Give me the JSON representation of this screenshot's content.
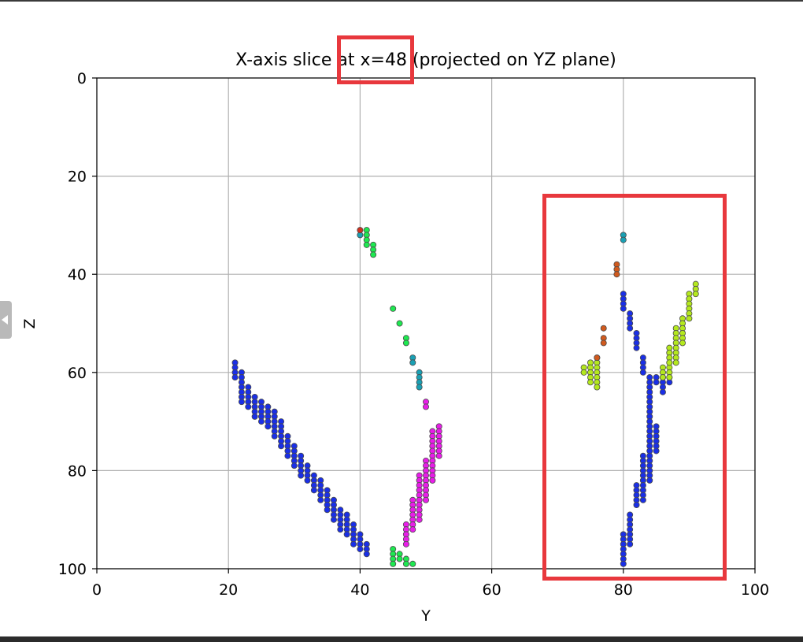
{
  "chart_data": {
    "type": "scatter",
    "title": "X-axis slice at x=48 (projected on YZ plane)",
    "xlabel": "Y",
    "ylabel": "Z",
    "xlim": [
      0,
      100
    ],
    "ylim": [
      100,
      0
    ],
    "y_inverted": true,
    "grid": true,
    "xticks": [
      0,
      20,
      40,
      60,
      80,
      100
    ],
    "yticks": [
      0,
      20,
      40,
      60,
      80,
      100
    ],
    "annotations": [
      {
        "type": "highlight-box",
        "target": "title value x=48",
        "color": "#e8383d"
      },
      {
        "type": "highlight-box",
        "target": "region y 68–95, z 24–102",
        "color": "#e8383d"
      }
    ],
    "series": [
      {
        "color": "#1a2fe6",
        "points": [
          [
            21,
            58
          ],
          [
            21,
            59
          ],
          [
            21,
            60
          ],
          [
            21,
            61
          ],
          [
            22,
            60
          ],
          [
            22,
            61
          ],
          [
            22,
            62
          ],
          [
            22,
            63
          ],
          [
            22,
            64
          ],
          [
            22,
            65
          ],
          [
            22,
            66
          ],
          [
            23,
            63
          ],
          [
            23,
            64
          ],
          [
            23,
            65
          ],
          [
            23,
            66
          ],
          [
            23,
            67
          ],
          [
            24,
            65
          ],
          [
            24,
            66
          ],
          [
            24,
            67
          ],
          [
            24,
            68
          ],
          [
            24,
            69
          ],
          [
            25,
            66
          ],
          [
            25,
            67
          ],
          [
            25,
            68
          ],
          [
            25,
            69
          ],
          [
            25,
            70
          ],
          [
            26,
            67
          ],
          [
            26,
            68
          ],
          [
            26,
            69
          ],
          [
            26,
            70
          ],
          [
            26,
            71
          ],
          [
            27,
            68
          ],
          [
            27,
            69
          ],
          [
            27,
            70
          ],
          [
            27,
            71
          ],
          [
            27,
            72
          ],
          [
            27,
            73
          ],
          [
            28,
            70
          ],
          [
            28,
            71
          ],
          [
            28,
            72
          ],
          [
            28,
            73
          ],
          [
            28,
            74
          ],
          [
            28,
            75
          ],
          [
            29,
            73
          ],
          [
            29,
            74
          ],
          [
            29,
            75
          ],
          [
            29,
            76
          ],
          [
            29,
            77
          ],
          [
            30,
            75
          ],
          [
            30,
            76
          ],
          [
            30,
            77
          ],
          [
            30,
            78
          ],
          [
            30,
            79
          ],
          [
            31,
            77
          ],
          [
            31,
            78
          ],
          [
            31,
            79
          ],
          [
            31,
            80
          ],
          [
            31,
            81
          ],
          [
            32,
            79
          ],
          [
            32,
            80
          ],
          [
            32,
            81
          ],
          [
            32,
            82
          ],
          [
            33,
            81
          ],
          [
            33,
            82
          ],
          [
            33,
            83
          ],
          [
            33,
            84
          ],
          [
            34,
            82
          ],
          [
            34,
            83
          ],
          [
            34,
            84
          ],
          [
            34,
            85
          ],
          [
            34,
            86
          ],
          [
            35,
            84
          ],
          [
            35,
            85
          ],
          [
            35,
            86
          ],
          [
            35,
            87
          ],
          [
            35,
            88
          ],
          [
            36,
            86
          ],
          [
            36,
            87
          ],
          [
            36,
            88
          ],
          [
            36,
            89
          ],
          [
            36,
            90
          ],
          [
            37,
            88
          ],
          [
            37,
            89
          ],
          [
            37,
            90
          ],
          [
            37,
            91
          ],
          [
            37,
            92
          ],
          [
            38,
            89
          ],
          [
            38,
            90
          ],
          [
            38,
            91
          ],
          [
            38,
            92
          ],
          [
            38,
            93
          ],
          [
            39,
            91
          ],
          [
            39,
            92
          ],
          [
            39,
            93
          ],
          [
            39,
            94
          ],
          [
            39,
            95
          ],
          [
            40,
            93
          ],
          [
            40,
            94
          ],
          [
            40,
            95
          ],
          [
            40,
            96
          ],
          [
            41,
            95
          ],
          [
            41,
            96
          ],
          [
            41,
            97
          ],
          [
            80,
            44
          ],
          [
            80,
            45
          ],
          [
            80,
            46
          ],
          [
            80,
            47
          ],
          [
            81,
            48
          ],
          [
            81,
            49
          ],
          [
            81,
            50
          ],
          [
            81,
            51
          ],
          [
            82,
            52
          ],
          [
            82,
            53
          ],
          [
            82,
            54
          ],
          [
            82,
            55
          ],
          [
            83,
            57
          ],
          [
            83,
            58
          ],
          [
            83,
            59
          ],
          [
            83,
            60
          ],
          [
            84,
            61
          ],
          [
            84,
            62
          ],
          [
            84,
            63
          ],
          [
            84,
            64
          ],
          [
            84,
            65
          ],
          [
            84,
            66
          ],
          [
            84,
            67
          ],
          [
            84,
            68
          ],
          [
            84,
            69
          ],
          [
            84,
            70
          ],
          [
            84,
            71
          ],
          [
            84,
            72
          ],
          [
            84,
            73
          ],
          [
            84,
            74
          ],
          [
            84,
            75
          ],
          [
            84,
            76
          ],
          [
            84,
            77
          ],
          [
            84,
            78
          ],
          [
            84,
            79
          ],
          [
            84,
            80
          ],
          [
            84,
            81
          ],
          [
            84,
            82
          ],
          [
            85,
            61
          ],
          [
            85,
            62
          ],
          [
            85,
            71
          ],
          [
            85,
            72
          ],
          [
            85,
            73
          ],
          [
            85,
            74
          ],
          [
            85,
            75
          ],
          [
            85,
            76
          ],
          [
            86,
            61
          ],
          [
            86,
            62
          ],
          [
            86,
            63
          ],
          [
            86,
            64
          ],
          [
            87,
            61
          ],
          [
            87,
            62
          ],
          [
            83,
            77
          ],
          [
            83,
            78
          ],
          [
            83,
            79
          ],
          [
            83,
            80
          ],
          [
            83,
            81
          ],
          [
            83,
            82
          ],
          [
            83,
            83
          ],
          [
            83,
            84
          ],
          [
            83,
            85
          ],
          [
            83,
            86
          ],
          [
            82,
            83
          ],
          [
            82,
            84
          ],
          [
            82,
            85
          ],
          [
            82,
            86
          ],
          [
            82,
            87
          ],
          [
            81,
            89
          ],
          [
            81,
            90
          ],
          [
            81,
            91
          ],
          [
            81,
            92
          ],
          [
            81,
            93
          ],
          [
            81,
            94
          ],
          [
            81,
            95
          ],
          [
            80,
            93
          ],
          [
            80,
            94
          ],
          [
            80,
            95
          ],
          [
            80,
            96
          ],
          [
            80,
            97
          ],
          [
            80,
            98
          ],
          [
            80,
            99
          ]
        ]
      },
      {
        "color": "#e81ee8",
        "points": [
          [
            52,
            71
          ],
          [
            52,
            72
          ],
          [
            52,
            73
          ],
          [
            52,
            74
          ],
          [
            52,
            75
          ],
          [
            52,
            76
          ],
          [
            52,
            77
          ],
          [
            51,
            72
          ],
          [
            51,
            73
          ],
          [
            51,
            74
          ],
          [
            51,
            75
          ],
          [
            51,
            76
          ],
          [
            51,
            77
          ],
          [
            51,
            78
          ],
          [
            51,
            79
          ],
          [
            51,
            80
          ],
          [
            51,
            81
          ],
          [
            51,
            82
          ],
          [
            50,
            78
          ],
          [
            50,
            79
          ],
          [
            50,
            80
          ],
          [
            50,
            81
          ],
          [
            50,
            82
          ],
          [
            50,
            83
          ],
          [
            50,
            84
          ],
          [
            50,
            85
          ],
          [
            50,
            86
          ],
          [
            49,
            81
          ],
          [
            49,
            82
          ],
          [
            49,
            83
          ],
          [
            49,
            84
          ],
          [
            49,
            85
          ],
          [
            49,
            86
          ],
          [
            49,
            87
          ],
          [
            49,
            88
          ],
          [
            49,
            89
          ],
          [
            49,
            90
          ],
          [
            48,
            86
          ],
          [
            48,
            87
          ],
          [
            48,
            88
          ],
          [
            48,
            89
          ],
          [
            48,
            90
          ],
          [
            48,
            91
          ],
          [
            48,
            92
          ],
          [
            47,
            91
          ],
          [
            47,
            92
          ],
          [
            47,
            93
          ],
          [
            47,
            94
          ],
          [
            47,
            95
          ],
          [
            50,
            66
          ],
          [
            50,
            67
          ]
        ]
      },
      {
        "color": "#1ee850",
        "points": [
          [
            41,
            31
          ],
          [
            41,
            32
          ],
          [
            41,
            33
          ],
          [
            41,
            34
          ],
          [
            42,
            34
          ],
          [
            42,
            35
          ],
          [
            42,
            36
          ],
          [
            45,
            96
          ],
          [
            45,
            97
          ],
          [
            45,
            98
          ],
          [
            45,
            99
          ],
          [
            46,
            97
          ],
          [
            46,
            98
          ],
          [
            47,
            98
          ],
          [
            47,
            99
          ],
          [
            48,
            99
          ],
          [
            45,
            47
          ],
          [
            46,
            50
          ],
          [
            47,
            53
          ],
          [
            47,
            54
          ]
        ]
      },
      {
        "color": "#1aa0b4",
        "points": [
          [
            40,
            32
          ],
          [
            48,
            57
          ],
          [
            48,
            58
          ],
          [
            49,
            60
          ],
          [
            49,
            61
          ],
          [
            49,
            62
          ],
          [
            49,
            63
          ],
          [
            80,
            32
          ],
          [
            80,
            33
          ]
        ]
      },
      {
        "color": "#b4e81e",
        "points": [
          [
            74,
            59
          ],
          [
            74,
            60
          ],
          [
            75,
            58
          ],
          [
            75,
            59
          ],
          [
            75,
            60
          ],
          [
            75,
            61
          ],
          [
            75,
            62
          ],
          [
            76,
            57
          ],
          [
            76,
            58
          ],
          [
            76,
            59
          ],
          [
            76,
            60
          ],
          [
            76,
            61
          ],
          [
            76,
            62
          ],
          [
            76,
            63
          ],
          [
            86,
            59
          ],
          [
            86,
            60
          ],
          [
            86,
            61
          ],
          [
            87,
            59
          ],
          [
            87,
            60
          ],
          [
            87,
            61
          ],
          [
            87,
            55
          ],
          [
            87,
            56
          ],
          [
            87,
            57
          ],
          [
            87,
            58
          ],
          [
            88,
            51
          ],
          [
            88,
            52
          ],
          [
            88,
            53
          ],
          [
            88,
            54
          ],
          [
            88,
            55
          ],
          [
            88,
            56
          ],
          [
            88,
            57
          ],
          [
            88,
            58
          ],
          [
            89,
            49
          ],
          [
            89,
            50
          ],
          [
            89,
            51
          ],
          [
            89,
            52
          ],
          [
            89,
            53
          ],
          [
            89,
            54
          ],
          [
            90,
            44
          ],
          [
            90,
            45
          ],
          [
            90,
            46
          ],
          [
            90,
            47
          ],
          [
            90,
            48
          ],
          [
            90,
            49
          ],
          [
            91,
            42
          ],
          [
            91,
            43
          ],
          [
            91,
            44
          ]
        ]
      },
      {
        "color": "#d05a1e",
        "points": [
          [
            79,
            38
          ],
          [
            79,
            39
          ],
          [
            79,
            40
          ],
          [
            77,
            51
          ],
          [
            77,
            53
          ],
          [
            77,
            54
          ],
          [
            76,
            57
          ]
        ]
      },
      {
        "color": "#d0301e",
        "points": [
          [
            40,
            31
          ]
        ]
      }
    ]
  }
}
